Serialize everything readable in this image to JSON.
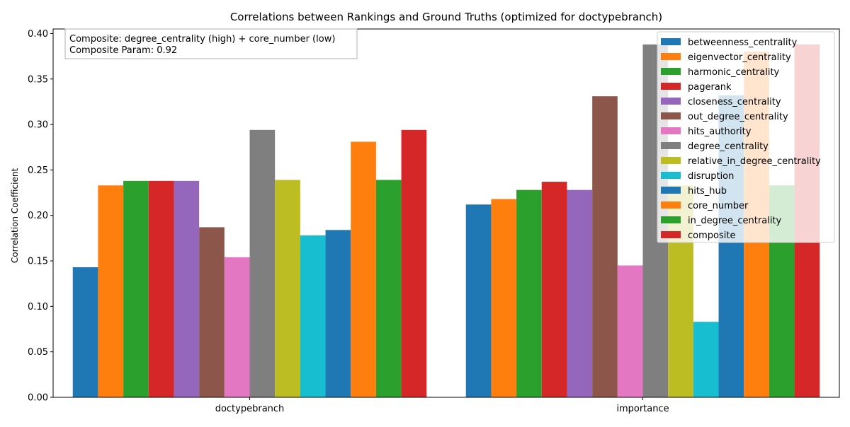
{
  "chart_data": {
    "type": "bar",
    "title": "Correlations between Rankings and Ground Truths (optimized for doctypebranch)",
    "xlabel": "",
    "ylabel": "Correlation Coefficient",
    "ylim": [
      0,
      0.405
    ],
    "yticks": [
      "0.00",
      "0.05",
      "0.10",
      "0.15",
      "0.20",
      "0.25",
      "0.30",
      "0.35",
      "0.40"
    ],
    "ytick_values": [
      0,
      0.05,
      0.1,
      0.15,
      0.2,
      0.25,
      0.3,
      0.35,
      0.4
    ],
    "categories": [
      "doctypebranch",
      "importance"
    ],
    "grid": false,
    "legend_position": "top-right",
    "annotation": {
      "line1": "Composite: degree_centrality (high) + core_number (low)",
      "line2": "Composite Param: 0.92",
      "position": "top-left"
    },
    "series": [
      {
        "name": "betweenness_centrality",
        "color": "#1f77b4",
        "values": [
          0.143,
          0.212
        ]
      },
      {
        "name": "eigenvector_centrality",
        "color": "#ff7f0e",
        "values": [
          0.233,
          0.218
        ]
      },
      {
        "name": "harmonic_centrality",
        "color": "#2ca02c",
        "values": [
          0.238,
          0.228
        ]
      },
      {
        "name": "pagerank",
        "color": "#d62728",
        "values": [
          0.238,
          0.237
        ]
      },
      {
        "name": "closeness_centrality",
        "color": "#9467bd",
        "values": [
          0.238,
          0.228
        ]
      },
      {
        "name": "out_degree_centrality",
        "color": "#8c564b",
        "values": [
          0.187,
          0.331
        ]
      },
      {
        "name": "hits_authority",
        "color": "#e377c2",
        "values": [
          0.154,
          0.145
        ]
      },
      {
        "name": "degree_centrality",
        "color": "#7f7f7f",
        "values": [
          0.294,
          0.388
        ]
      },
      {
        "name": "relative_in_degree_centrality",
        "color": "#bcbd22",
        "values": [
          0.239,
          0.233
        ]
      },
      {
        "name": "disruption",
        "color": "#17becf",
        "values": [
          0.178,
          0.083
        ]
      },
      {
        "name": "hits_hub",
        "color": "#1f77b4",
        "values": [
          0.184,
          0.332
        ]
      },
      {
        "name": "core_number",
        "color": "#ff7f0e",
        "values": [
          0.281,
          0.38
        ]
      },
      {
        "name": "in_degree_centrality",
        "color": "#2ca02c",
        "values": [
          0.239,
          0.233
        ]
      },
      {
        "name": "composite",
        "color": "#d62728",
        "values": [
          0.294,
          0.388
        ]
      }
    ]
  }
}
